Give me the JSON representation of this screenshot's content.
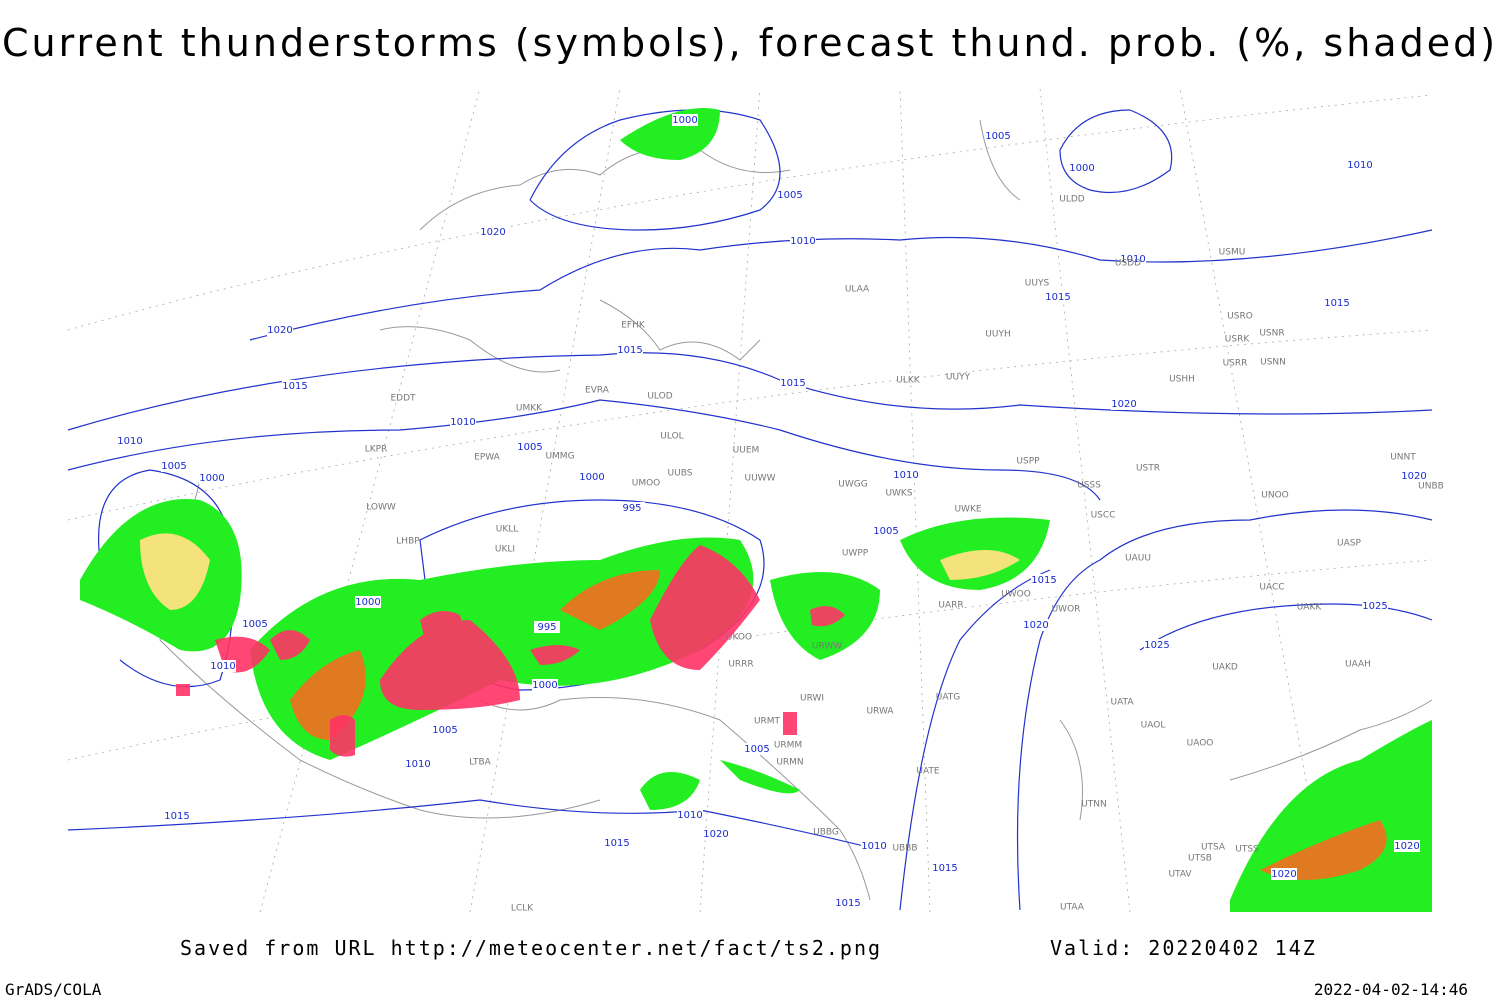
{
  "header": {
    "title": "Current thunderstorms (symbols), forecast thund. prob. (%, shaded)"
  },
  "footer": {
    "source": "Saved from URL http://meteocenter.net/fact/ts2.png",
    "valid": "Valid: 20220402 14Z",
    "software": "GrADS/COLA",
    "timestamp": "2022-04-02-14:46"
  },
  "isobar_labels": [
    1000,
    1005,
    1000,
    1010,
    1005,
    1020,
    1010,
    1010,
    1015,
    1015,
    1020,
    1015,
    1015,
    1015,
    1020,
    1010,
    1010,
    1005,
    1005,
    1020,
    1000,
    1000,
    1010,
    995,
    1005,
    1015,
    1000,
    1005,
    995,
    1020,
    1025,
    1025,
    1010,
    1000,
    1005,
    1005,
    1010,
    1015,
    1010,
    1020,
    1015,
    1010,
    1015,
    1015,
    1020,
    1020
  ],
  "stations": [
    "ULDD",
    "USDD",
    "USMU",
    "ULAA",
    "UUYS",
    "UUYH",
    "USRO",
    "USRK",
    "USNR",
    "USRR",
    "USNN",
    "ULKK",
    "UUYY",
    "USHH",
    "EFHK",
    "EVRA",
    "ULOD",
    "EDDT",
    "UMKK",
    "ULOL",
    "UUEM",
    "EPWA",
    "UMMG",
    "USPP",
    "USSS",
    "USTR",
    "UNNT",
    "UNBB",
    "LKPR",
    "UUWW",
    "UUBS",
    "UWGG",
    "UWKS",
    "UMOO",
    "LOWW",
    "UKLL",
    "UKLI",
    "LHBP",
    "USCC",
    "UWKE",
    "UNOO",
    "UAUU",
    "UASP",
    "UACC",
    "UAKK",
    "UAAH",
    "UAKD",
    "UATA",
    "UAOL",
    "UATG",
    "UAOO",
    "UTNN",
    "UTSA",
    "UTSB",
    "UTAV",
    "UTAA",
    "UTSS",
    "URWW",
    "URWI",
    "URWA",
    "UATE",
    "URMM",
    "URMN",
    "URMT",
    "UBBB",
    "UBBG",
    "LTBA",
    "LCLK",
    "UKOO",
    "URRR",
    "UWPP",
    "UARR",
    "UWOO",
    "UWOR"
  ]
}
